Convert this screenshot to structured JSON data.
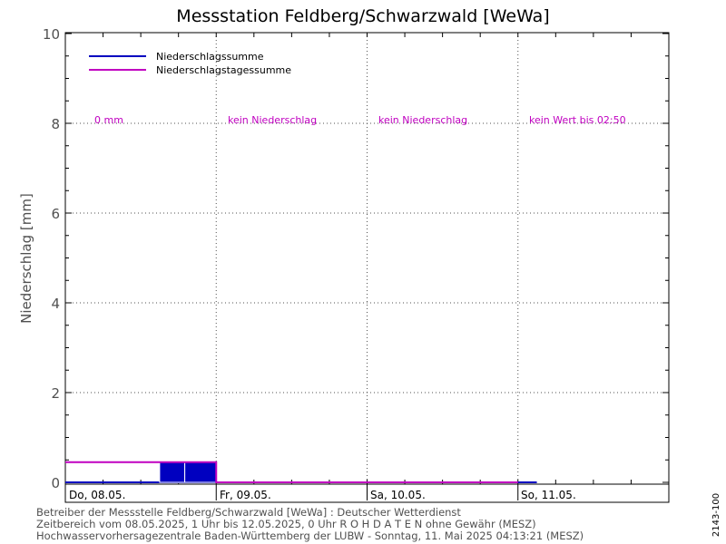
{
  "chart_data": {
    "type": "bar",
    "title": "Messstation Feldberg/Schwarzwald [WeWa]",
    "ylabel": "Niederschlag [mm]",
    "xlabel": "",
    "ylim": [
      0,
      10
    ],
    "yticks": [
      0,
      2,
      4,
      6,
      8,
      10
    ],
    "grid": true,
    "legend_position": "top-left",
    "x_range_hours": [
      0,
      96
    ],
    "day_labels": [
      {
        "label": "Do, 08.05.",
        "start_hour": 0
      },
      {
        "label": "Fr, 09.05.",
        "start_hour": 24
      },
      {
        "label": "Sa, 10.05.",
        "start_hour": 48
      },
      {
        "label": "So, 11.05.",
        "start_hour": 72
      }
    ],
    "day_annotations": [
      "0 mm",
      "kein Niederschlag",
      "kein Niederschlag",
      "kein Wert bis 02:50"
    ],
    "series": [
      {
        "name": "Niederschlagssumme",
        "color": "#0000c0",
        "bars": [
          {
            "x0": 15,
            "x1": 19,
            "value": 0.45
          },
          {
            "x0": 19,
            "x1": 24,
            "value": 0.45
          }
        ],
        "baseline_end_hour": 75
      },
      {
        "name": "Niederschlagstagessumme",
        "color": "#c000c0",
        "steps": [
          {
            "x0": 0,
            "x1": 24,
            "value": 0.45
          },
          {
            "x0": 24,
            "x1": 48,
            "value": 0
          },
          {
            "x0": 48,
            "x1": 72,
            "value": 0
          }
        ]
      }
    ],
    "colors": {
      "title": "#000000",
      "axis_text": "#505050",
      "annotation": "#c000c0",
      "grid": "#505050"
    }
  },
  "footer": {
    "line1": "Betreiber der Messstelle Feldberg/Schwarzwald [WeWa] : Deutscher Wetterdienst",
    "line2": "Zeitbereich vom 08.05.2025, 1 Uhr bis 12.05.2025, 0 Uhr   R O H D A T E N ohne Gewähr (MESZ)",
    "line3": "Hochwasservorhersagezentrale Baden-Württemberg der LUBW -  Sonntag, 11. Mai 2025 04:13:21 (MESZ)"
  },
  "side_id": "2143-100"
}
